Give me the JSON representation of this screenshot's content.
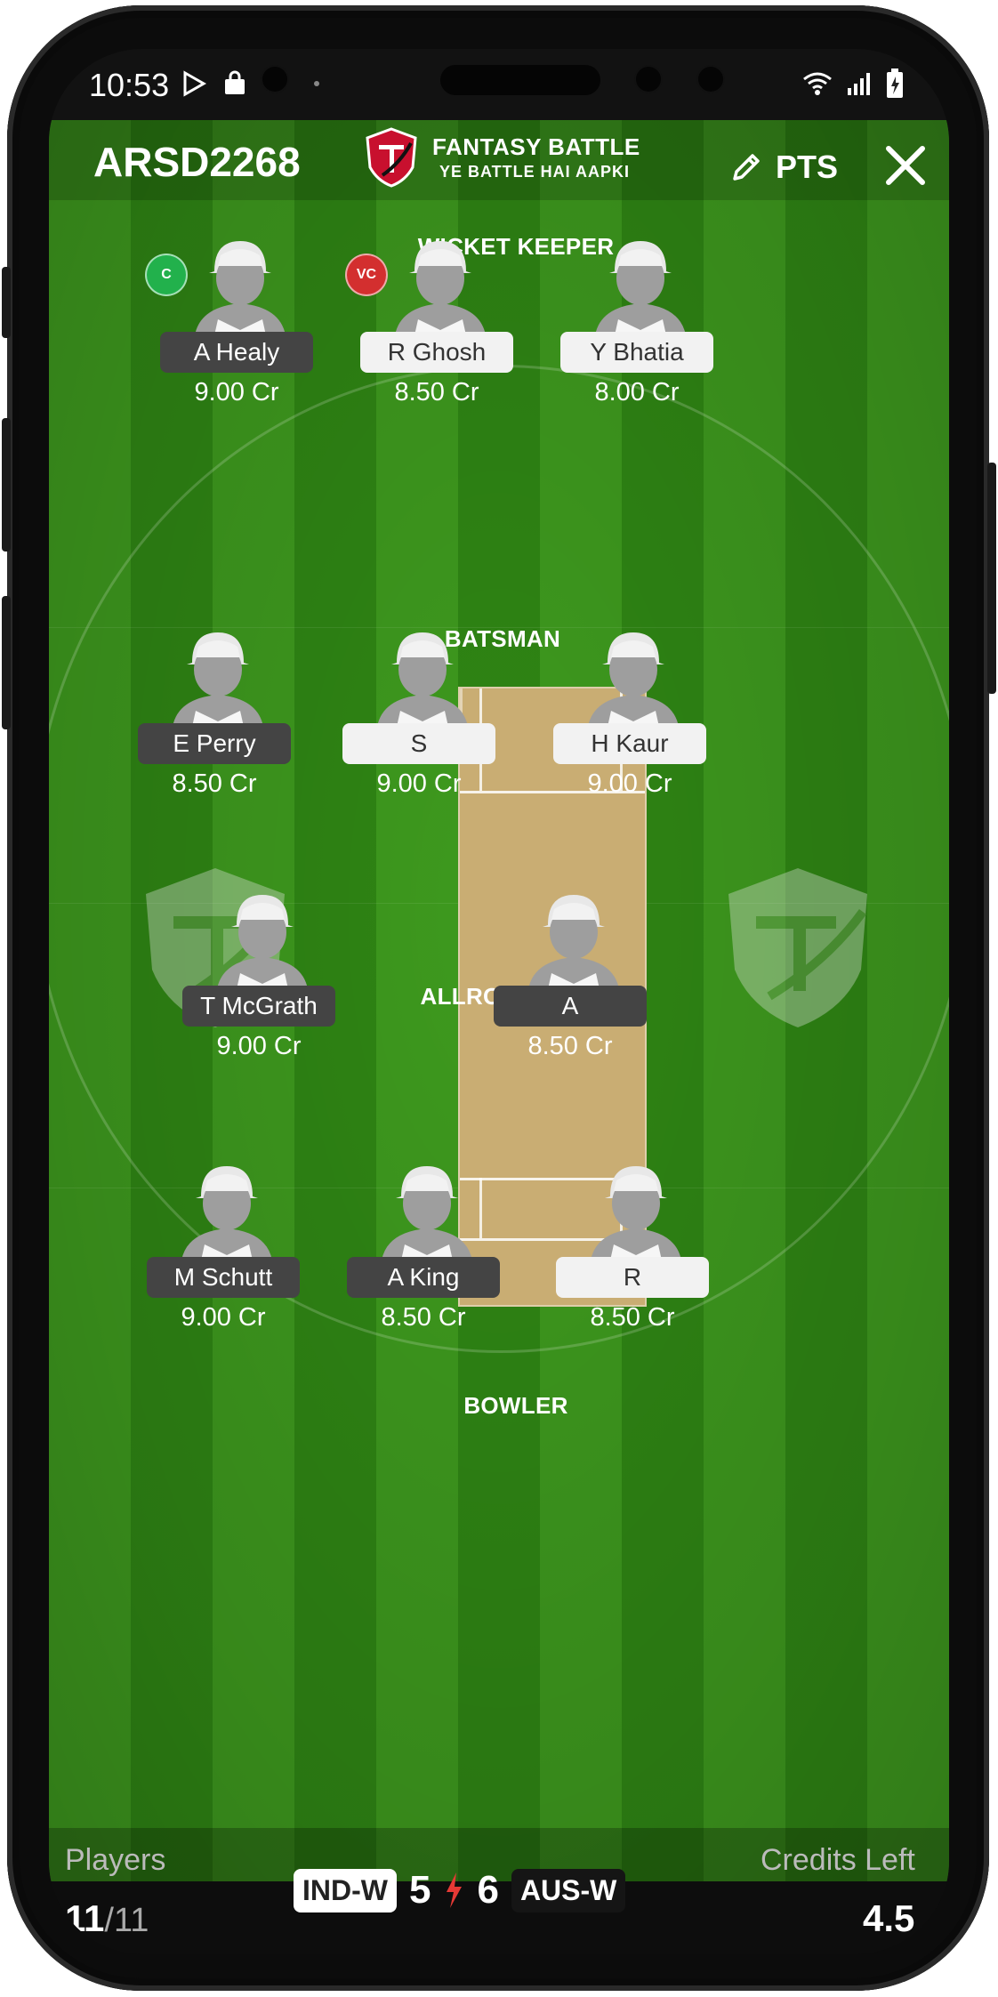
{
  "status_bar": {
    "time": "10:53"
  },
  "header": {
    "team_code": "ARSD2268",
    "brand_title": "FANTASY BATTLE",
    "brand_tagline": "YE BATTLE HAI AAPKI",
    "pts_label": "PTS"
  },
  "sections": {
    "wicket_keeper": "WICKET KEEPER",
    "batsman": "BATSMAN",
    "allrounder": "ALLROUNDER",
    "bowler": "BOWLER"
  },
  "badges": {
    "captain": "C",
    "vice_captain": "VC"
  },
  "players": {
    "wk": [
      {
        "name": "A Healy",
        "credits": "9.00 Cr",
        "plate": "dark",
        "badge": "captain"
      },
      {
        "name": "R Ghosh",
        "credits": "8.50 Cr",
        "plate": "light",
        "badge": "vice_captain"
      },
      {
        "name": "Y Bhatia",
        "credits": "8.00 Cr",
        "plate": "light"
      }
    ],
    "bat": [
      {
        "name": "E Perry",
        "credits": "8.50 Cr",
        "plate": "dark"
      },
      {
        "name": "S",
        "credits": "9.00 Cr",
        "plate": "light"
      },
      {
        "name": "H Kaur",
        "credits": "9.00 Cr",
        "plate": "light"
      }
    ],
    "ar": [
      {
        "name": "T McGrath",
        "credits": "9.00 Cr",
        "plate": "dark"
      },
      {
        "name": "A",
        "credits": "8.50 Cr",
        "plate": "dark"
      }
    ],
    "bowl": [
      {
        "name": "M Schutt",
        "credits": "9.00 Cr",
        "plate": "dark"
      },
      {
        "name": "A King",
        "credits": "8.50 Cr",
        "plate": "dark"
      },
      {
        "name": "R",
        "credits": "8.50 Cr",
        "plate": "light"
      }
    ]
  },
  "footer": {
    "players_label": "Players",
    "players_selected": "11",
    "players_total": "/11",
    "team1": "IND-W",
    "team1_count": "5",
    "team2_count": "6",
    "team2": "AUS-W",
    "credits_label": "Credits Left",
    "credits_left": "4.5"
  },
  "colors": {
    "grass_light": "#3e9a1e",
    "grass_dark": "#2f8614",
    "pitch": "#c9ad73",
    "captain_badge": "#22b14c",
    "vice_captain_badge": "#d32f2f",
    "plate_dark": "#444444",
    "plate_light": "#f2f2f2"
  },
  "icons": {
    "status": [
      "play-store-icon",
      "shopping-bag-icon",
      "bird-icon",
      "wifi-icon",
      "signal-icon",
      "battery-icon"
    ],
    "header": [
      "shield-logo-icon",
      "pencil-icon",
      "close-icon"
    ],
    "player": "person-silhouette-icon",
    "versus": "lightning-icon"
  }
}
